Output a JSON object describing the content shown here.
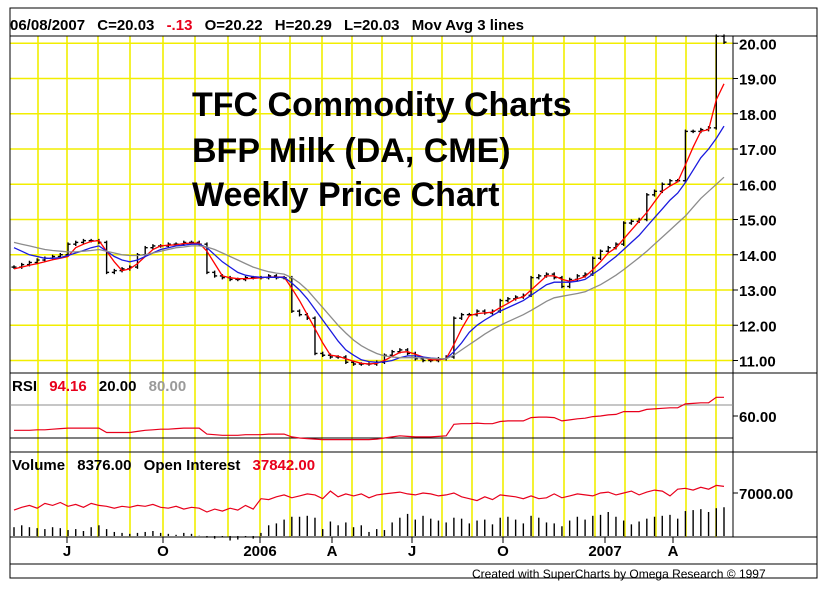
{
  "header": {
    "date": "06/08/2007",
    "close": "C=20.03",
    "change": "-.13",
    "open": "O=20.22",
    "high": "H=20.29",
    "low": "L=20.03",
    "study": "Mov Avg 3 lines"
  },
  "title_lines": [
    "TFC Commodity Charts",
    "BFP Milk (DA, CME)",
    "Weekly Price Chart"
  ],
  "rsi_header": {
    "label": "RSI",
    "value": "94.16",
    "low": "20.00",
    "high": "80.00"
  },
  "volume_header": {
    "label": "Volume",
    "value": "8376.00",
    "oi_label": "Open Interest",
    "oi_value": "37842.00"
  },
  "footer": "Created with SuperCharts by Omega Research © 1997",
  "colors": {
    "grid": "#f2ee00",
    "price_bars": "#000000",
    "ma_short": "#ff0000",
    "ma_mid": "#1a1adf",
    "ma_long": "#8c8c8c",
    "rsi_line": "#e8001c",
    "oi_line": "#e8001c",
    "volume_bars": "#000000",
    "change_text": "#e8001c"
  },
  "chart_data": [
    {
      "type": "ohlc",
      "panel": "price",
      "x_ticks": [
        "J",
        "O",
        "2006",
        "A",
        "J",
        "O",
        "2007",
        "A"
      ],
      "y_ticks": [
        "11.00",
        "12.00",
        "13.00",
        "14.00",
        "15.00",
        "16.00",
        "17.00",
        "18.00",
        "19.00",
        "20.00"
      ],
      "ylim": [
        10.5,
        20.5
      ],
      "series": [
        {
          "name": "Close",
          "values": [
            13.65,
            13.72,
            13.78,
            13.85,
            13.9,
            13.95,
            14.0,
            14.3,
            14.35,
            14.4,
            14.4,
            14.35,
            13.5,
            13.55,
            13.6,
            13.65,
            14.0,
            14.2,
            14.25,
            14.25,
            14.3,
            14.3,
            14.35,
            14.35,
            14.3,
            13.5,
            13.4,
            13.35,
            13.3,
            13.3,
            13.35,
            13.35,
            13.35,
            13.4,
            13.35,
            13.35,
            12.4,
            12.3,
            12.2,
            11.2,
            11.15,
            11.1,
            11.1,
            10.95,
            10.9,
            10.9,
            10.9,
            10.95,
            11.15,
            11.25,
            11.3,
            11.2,
            11.05,
            11.0,
            11.0,
            11.05,
            11.1,
            12.2,
            12.3,
            12.3,
            12.4,
            12.35,
            12.4,
            12.7,
            12.75,
            12.8,
            12.85,
            13.35,
            13.4,
            13.45,
            13.35,
            13.1,
            13.3,
            13.4,
            13.45,
            13.9,
            14.1,
            14.2,
            14.3,
            14.9,
            14.95,
            15.0,
            15.7,
            15.8,
            16.0,
            16.1,
            16.1,
            17.5,
            17.5,
            17.55,
            17.6,
            20.2,
            20.03
          ]
        },
        {
          "name": "Mov Avg 1",
          "values": [
            13.6,
            13.65,
            13.7,
            13.75,
            13.8,
            13.86,
            13.9,
            13.95,
            14.2,
            14.3,
            14.38,
            14.4,
            14.1,
            13.8,
            13.55,
            13.6,
            13.75,
            13.95,
            14.15,
            14.25,
            14.27,
            14.28,
            14.32,
            14.33,
            14.33,
            14.1,
            13.75,
            13.4,
            13.35,
            13.32,
            13.32,
            13.33,
            13.35,
            13.37,
            13.37,
            13.37,
            13.05,
            12.7,
            12.3,
            11.9,
            11.5,
            11.15,
            11.12,
            11.05,
            10.98,
            10.92,
            10.9,
            10.92,
            11.0,
            11.12,
            11.23,
            11.25,
            11.18,
            11.1,
            11.02,
            11.02,
            11.05,
            11.45,
            11.9,
            12.27,
            12.33,
            12.35,
            12.37,
            12.5,
            12.62,
            12.75,
            12.8,
            13.0,
            13.2,
            13.4,
            13.4,
            13.3,
            13.25,
            13.3,
            13.38,
            13.58,
            13.8,
            14.05,
            14.2,
            14.45,
            14.7,
            14.95,
            15.2,
            15.5,
            15.8,
            15.95,
            16.07,
            16.55,
            17.05,
            17.5,
            17.55,
            18.4,
            18.85
          ]
        },
        {
          "name": "Mov Avg 2",
          "values": [
            14.2,
            14.1,
            14.0,
            13.95,
            13.9,
            13.9,
            13.92,
            13.98,
            14.05,
            14.12,
            14.2,
            14.25,
            14.1,
            13.95,
            13.85,
            13.8,
            13.85,
            13.95,
            14.05,
            14.15,
            14.2,
            14.25,
            14.27,
            14.3,
            14.3,
            14.2,
            14.0,
            13.8,
            13.65,
            13.5,
            13.42,
            13.38,
            13.36,
            13.36,
            13.36,
            13.36,
            13.2,
            13.0,
            12.75,
            12.45,
            12.15,
            11.85,
            11.55,
            11.3,
            11.15,
            11.02,
            10.97,
            10.95,
            10.96,
            11.0,
            11.08,
            11.13,
            11.13,
            11.1,
            11.07,
            11.05,
            11.05,
            11.25,
            11.5,
            11.8,
            12.0,
            12.15,
            12.28,
            12.4,
            12.5,
            12.6,
            12.7,
            12.85,
            13.0,
            13.15,
            13.22,
            13.22,
            13.22,
            13.25,
            13.3,
            13.45,
            13.6,
            13.78,
            13.95,
            14.15,
            14.35,
            14.55,
            14.8,
            15.05,
            15.3,
            15.55,
            15.75,
            16.05,
            16.4,
            16.75,
            17.0,
            17.3,
            17.65
          ]
        },
        {
          "name": "Mov Avg 3",
          "values": [
            14.35,
            14.3,
            14.25,
            14.2,
            14.15,
            14.12,
            14.1,
            14.08,
            14.08,
            14.1,
            14.12,
            14.15,
            14.1,
            14.05,
            14.0,
            13.98,
            13.98,
            14.0,
            14.05,
            14.1,
            14.15,
            14.2,
            14.22,
            14.25,
            14.25,
            14.22,
            14.15,
            14.05,
            13.95,
            13.85,
            13.75,
            13.65,
            13.58,
            13.52,
            13.48,
            13.45,
            13.35,
            13.2,
            13.0,
            12.75,
            12.5,
            12.25,
            12.0,
            11.78,
            11.58,
            11.42,
            11.3,
            11.2,
            11.13,
            11.1,
            11.08,
            11.08,
            11.08,
            11.07,
            11.06,
            11.05,
            11.05,
            11.15,
            11.3,
            11.45,
            11.6,
            11.75,
            11.88,
            12.0,
            12.1,
            12.2,
            12.3,
            12.42,
            12.55,
            12.68,
            12.78,
            12.82,
            12.86,
            12.9,
            12.95,
            13.05,
            13.15,
            13.28,
            13.42,
            13.58,
            13.75,
            13.92,
            14.1,
            14.3,
            14.5,
            14.7,
            14.9,
            15.1,
            15.35,
            15.6,
            15.8,
            16.0,
            16.2
          ]
        }
      ]
    },
    {
      "type": "line",
      "panel": "rsi",
      "name": "RSI",
      "y_ticks": [
        "60.00"
      ],
      "ylim": [
        0,
        100
      ],
      "reference_lines": [
        20,
        80
      ],
      "values": [
        34,
        34,
        34,
        35,
        35,
        36,
        37,
        38,
        38,
        38,
        38,
        38,
        30,
        30,
        30,
        30,
        32,
        34,
        35,
        36,
        36,
        37,
        38,
        38,
        38,
        27,
        26,
        25,
        25,
        25,
        26,
        26,
        26,
        27,
        27,
        27,
        22,
        20,
        19,
        18,
        17,
        17,
        17,
        17,
        17,
        17,
        17,
        18,
        20,
        22,
        24,
        23,
        22,
        22,
        22,
        23,
        24,
        45,
        46,
        46,
        47,
        46,
        46,
        50,
        51,
        51,
        51,
        57,
        58,
        58,
        57,
        51,
        53,
        55,
        56,
        59,
        60,
        62,
        63,
        68,
        68,
        68,
        72,
        73,
        74,
        75,
        75,
        82,
        83,
        84,
        84,
        94,
        94
      ]
    },
    {
      "type": "bar+line",
      "panel": "volume",
      "y_ticks": [
        "7000.00"
      ],
      "series": [
        {
          "name": "Volume",
          "values": [
            3400,
            3600,
            3400,
            3300,
            3200,
            3400,
            3300,
            3100,
            3200,
            3000,
            3400,
            3600,
            3200,
            2900,
            2800,
            2700,
            2800,
            2900,
            3000,
            2800,
            2700,
            2600,
            2800,
            2700,
            2500,
            2300,
            2200,
            2400,
            2000,
            2100,
            2400,
            2200,
            2800,
            3600,
            3800,
            4200,
            4500,
            4500,
            4600,
            4400,
            3200,
            4000,
            3600,
            3900,
            3400,
            3600,
            2900,
            3200,
            3100,
            3900,
            4400,
            4800,
            4200,
            4600,
            4300,
            4100,
            3900,
            4400,
            4300,
            3800,
            4100,
            4200,
            3700,
            4400,
            4500,
            4200,
            3800,
            4600,
            4400,
            3900,
            3800,
            3500,
            4100,
            4500,
            4200,
            4600,
            4700,
            5000,
            4500,
            4100,
            3700,
            4000,
            4300,
            4500,
            4600,
            4700,
            4300,
            5100,
            5200,
            5300,
            5000,
            5400,
            5500
          ]
        },
        {
          "name": "Open Interest",
          "values": [
            5200,
            5500,
            5700,
            5400,
            5900,
            5700,
            6000,
            5600,
            5800,
            5500,
            5900,
            5700,
            5600,
            5400,
            5600,
            5500,
            5700,
            5600,
            5800,
            5500,
            5400,
            5600,
            5300,
            5500,
            5400,
            5000,
            5300,
            5100,
            5400,
            5200,
            5700,
            5300,
            6400,
            6300,
            6600,
            6800,
            6500,
            6700,
            6900,
            6800,
            6400,
            7200,
            6600,
            6900,
            6700,
            6900,
            6500,
            6800,
            6900,
            7000,
            7100,
            6900,
            6800,
            7000,
            6900,
            6700,
            6800,
            7000,
            6600,
            6400,
            6200,
            6600,
            6300,
            6800,
            6700,
            6600,
            6400,
            6700,
            6400,
            6500,
            6900,
            6500,
            6700,
            6900,
            6800,
            6700,
            7000,
            7100,
            6800,
            7000,
            7200,
            6800,
            7100,
            7300,
            7200,
            6700,
            7400,
            7500,
            7300,
            7600,
            7400,
            7800,
            7700
          ]
        }
      ]
    }
  ]
}
